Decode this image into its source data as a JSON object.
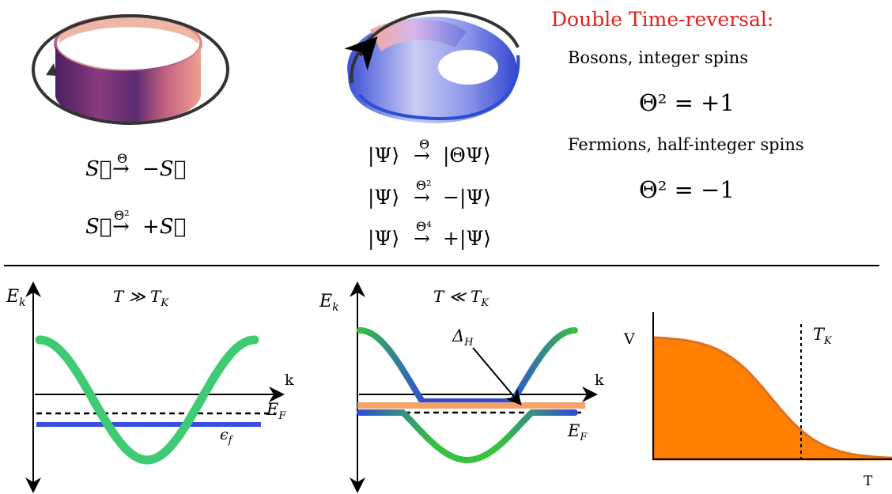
{
  "header": {
    "title": "Double Time-reversal:",
    "title_color": "#e0201a",
    "bosons_label": "Bosons, integer spins",
    "bosons_eq": "Θ² = +1",
    "fermions_label": "Fermions, half-integer spins",
    "fermions_eq": "Θ² = −1"
  },
  "left_equations": {
    "eq1_left": "S⃗",
    "eq1_op": "Θ",
    "eq1_right": "−S⃗",
    "eq2_left": "S⃗",
    "eq2_op": "Θ²",
    "eq2_right": "+S⃗"
  },
  "middle_equations": {
    "eq1_left": "|Ψ⟩",
    "eq1_op": "Θ",
    "eq1_right": "|ΘΨ⟩",
    "eq2_left": "|Ψ⟩",
    "eq2_op": "Θ²",
    "eq2_right": "−|Ψ⟩",
    "eq3_left": "|Ψ⟩",
    "eq3_op": "Θ⁴",
    "eq3_right": "+|Ψ⟩"
  },
  "panel1": {
    "y_label": "E",
    "y_label_sub": "k",
    "condition": "T ≫ T",
    "condition_sub": "K",
    "x_label": "k",
    "ef_label": "E",
    "ef_sub": "F",
    "level_label": "ϵ",
    "level_sub": "f",
    "band_color": "#3ecb73",
    "level_color": "#3a4fe0"
  },
  "panel2": {
    "y_label": "E",
    "y_label_sub": "k",
    "condition": "T ≪ T",
    "condition_sub": "K",
    "x_label": "k",
    "ef_label": "E",
    "ef_sub": "F",
    "gap_label": "Δ",
    "gap_sub": "H",
    "gap_line_color": "#f4a26a"
  },
  "panel3": {
    "y_label": "V",
    "x_label": "T",
    "tk_label": "T",
    "tk_sub": "K",
    "fill_color": "#ff8000"
  }
}
